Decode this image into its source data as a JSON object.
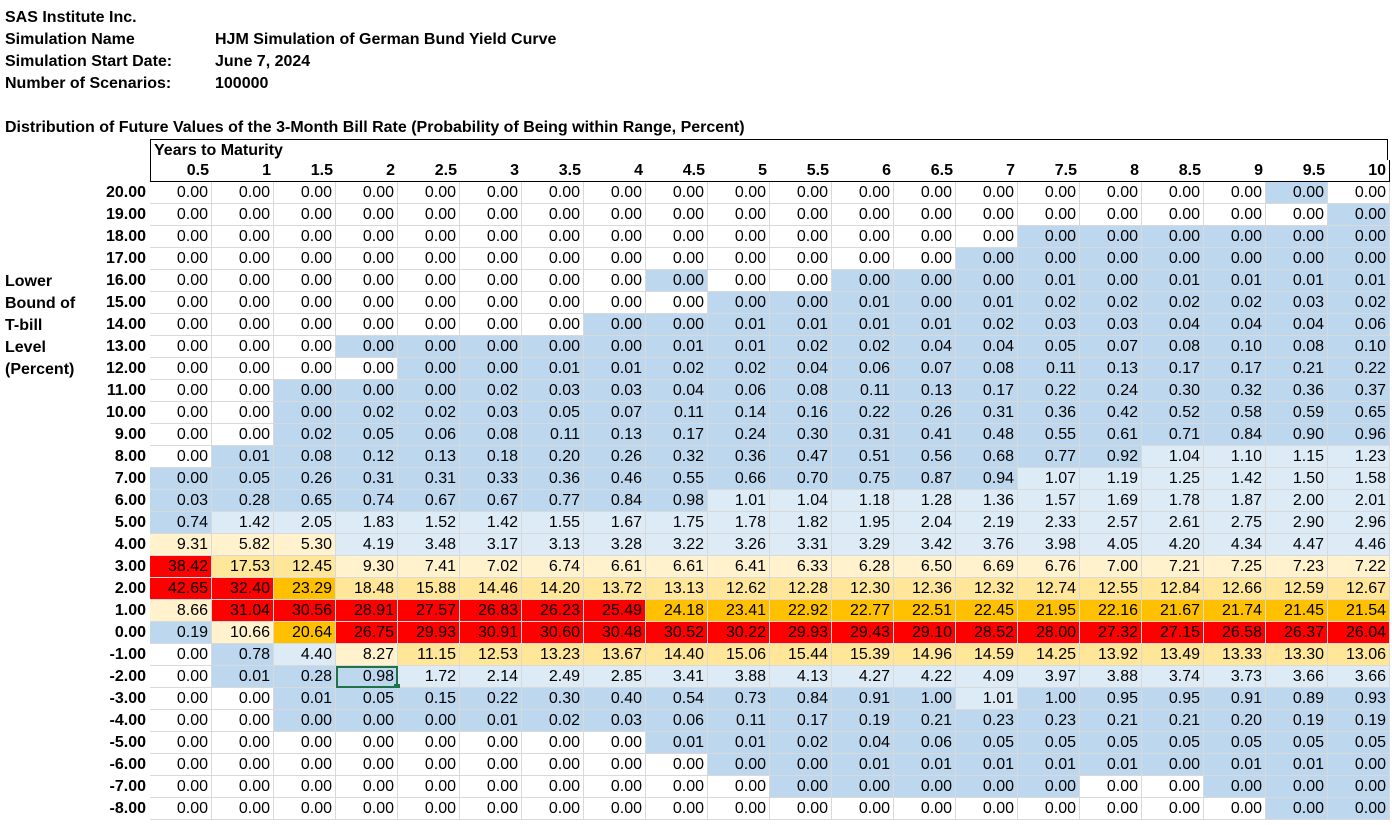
{
  "header": {
    "company": "SAS Institute Inc.",
    "sim_name_label": "Simulation Name",
    "sim_name_value": "HJM Simulation of German Bund Yield Curve",
    "start_label": "Simulation Start Date:",
    "start_value": "June 7, 2024",
    "scen_label": "Number of Scenarios:",
    "scen_value": "100000"
  },
  "table_title": "Distribution of Future Values of the 3-Month Bill Rate (Probability of Being within Range, Percent)",
  "years_label": "Years to Maturity",
  "side_label": [
    "Lower",
    "Bound of",
    "T-bill",
    "Level",
    "(Percent)"
  ],
  "columns": [
    "0.5",
    "1",
    "1.5",
    "2",
    "2.5",
    "3",
    "3.5",
    "4",
    "4.5",
    "5",
    "5.5",
    "6",
    "6.5",
    "7",
    "7.5",
    "8",
    "8.5",
    "9",
    "9.5",
    "10"
  ],
  "colors": {
    "white": "#ffffff",
    "blue": "#bdd7ee",
    "light_blue": "#ddebf7",
    "cream": "#fff2cc",
    "yellow": "#ffe699",
    "orange": "#ffc000",
    "red": "#ff0000",
    "selection": "#217346"
  },
  "selected_cell": {
    "row": 22,
    "col": 3
  },
  "rows": [
    {
      "label": "20.00",
      "values": [
        "0.00",
        "0.00",
        "0.00",
        "0.00",
        "0.00",
        "0.00",
        "0.00",
        "0.00",
        "0.00",
        "0.00",
        "0.00",
        "0.00",
        "0.00",
        "0.00",
        "0.00",
        "0.00",
        "0.00",
        "0.00",
        "0.00",
        "0.00"
      ],
      "shade": [
        0,
        0,
        0,
        0,
        0,
        0,
        0,
        0,
        0,
        0,
        0,
        0,
        0,
        0,
        0,
        0,
        0,
        0,
        1,
        0
      ]
    },
    {
      "label": "19.00",
      "values": [
        "0.00",
        "0.00",
        "0.00",
        "0.00",
        "0.00",
        "0.00",
        "0.00",
        "0.00",
        "0.00",
        "0.00",
        "0.00",
        "0.00",
        "0.00",
        "0.00",
        "0.00",
        "0.00",
        "0.00",
        "0.00",
        "0.00",
        "0.00"
      ],
      "shade": [
        0,
        0,
        0,
        0,
        0,
        0,
        0,
        0,
        0,
        0,
        0,
        0,
        0,
        0,
        0,
        0,
        0,
        0,
        0,
        1
      ]
    },
    {
      "label": "18.00",
      "values": [
        "0.00",
        "0.00",
        "0.00",
        "0.00",
        "0.00",
        "0.00",
        "0.00",
        "0.00",
        "0.00",
        "0.00",
        "0.00",
        "0.00",
        "0.00",
        "0.00",
        "0.00",
        "0.00",
        "0.00",
        "0.00",
        "0.00",
        "0.00"
      ],
      "shade": [
        0,
        0,
        0,
        0,
        0,
        0,
        0,
        0,
        0,
        0,
        0,
        0,
        0,
        0,
        1,
        1,
        1,
        1,
        1,
        1
      ]
    },
    {
      "label": "17.00",
      "values": [
        "0.00",
        "0.00",
        "0.00",
        "0.00",
        "0.00",
        "0.00",
        "0.00",
        "0.00",
        "0.00",
        "0.00",
        "0.00",
        "0.00",
        "0.00",
        "0.00",
        "0.00",
        "0.00",
        "0.00",
        "0.00",
        "0.00",
        "0.00"
      ],
      "shade": [
        0,
        0,
        0,
        0,
        0,
        0,
        0,
        0,
        0,
        0,
        0,
        0,
        0,
        1,
        1,
        1,
        1,
        1,
        1,
        1
      ]
    },
    {
      "label": "16.00",
      "values": [
        "0.00",
        "0.00",
        "0.00",
        "0.00",
        "0.00",
        "0.00",
        "0.00",
        "0.00",
        "0.00",
        "0.00",
        "0.00",
        "0.00",
        "0.00",
        "0.00",
        "0.01",
        "0.00",
        "0.01",
        "0.01",
        "0.01",
        "0.01"
      ],
      "shade": [
        0,
        0,
        0,
        0,
        0,
        0,
        0,
        0,
        1,
        0,
        0,
        1,
        1,
        1,
        1,
        1,
        1,
        1,
        1,
        1
      ]
    },
    {
      "label": "15.00",
      "values": [
        "0.00",
        "0.00",
        "0.00",
        "0.00",
        "0.00",
        "0.00",
        "0.00",
        "0.00",
        "0.00",
        "0.00",
        "0.00",
        "0.01",
        "0.00",
        "0.01",
        "0.02",
        "0.02",
        "0.02",
        "0.02",
        "0.03",
        "0.02"
      ],
      "shade": [
        0,
        0,
        0,
        0,
        0,
        0,
        0,
        0,
        0,
        1,
        1,
        1,
        1,
        1,
        1,
        1,
        1,
        1,
        1,
        1
      ]
    },
    {
      "label": "14.00",
      "values": [
        "0.00",
        "0.00",
        "0.00",
        "0.00",
        "0.00",
        "0.00",
        "0.00",
        "0.00",
        "0.00",
        "0.01",
        "0.01",
        "0.01",
        "0.01",
        "0.02",
        "0.03",
        "0.03",
        "0.04",
        "0.04",
        "0.04",
        "0.06"
      ],
      "shade": [
        0,
        0,
        0,
        0,
        0,
        0,
        0,
        1,
        1,
        1,
        1,
        1,
        1,
        1,
        1,
        1,
        1,
        1,
        1,
        1
      ]
    },
    {
      "label": "13.00",
      "values": [
        "0.00",
        "0.00",
        "0.00",
        "0.00",
        "0.00",
        "0.00",
        "0.00",
        "0.00",
        "0.01",
        "0.01",
        "0.02",
        "0.02",
        "0.04",
        "0.04",
        "0.05",
        "0.07",
        "0.08",
        "0.10",
        "0.08",
        "0.10"
      ],
      "shade": [
        0,
        0,
        0,
        1,
        1,
        1,
        1,
        1,
        1,
        1,
        1,
        1,
        1,
        1,
        1,
        1,
        1,
        1,
        1,
        1
      ]
    },
    {
      "label": "12.00",
      "values": [
        "0.00",
        "0.00",
        "0.00",
        "0.00",
        "0.00",
        "0.00",
        "0.01",
        "0.01",
        "0.02",
        "0.02",
        "0.04",
        "0.06",
        "0.07",
        "0.08",
        "0.11",
        "0.13",
        "0.17",
        "0.17",
        "0.21",
        "0.22"
      ],
      "shade": [
        0,
        0,
        0,
        0,
        1,
        1,
        1,
        1,
        1,
        1,
        1,
        1,
        1,
        1,
        1,
        1,
        1,
        1,
        1,
        1
      ]
    },
    {
      "label": "11.00",
      "values": [
        "0.00",
        "0.00",
        "0.00",
        "0.00",
        "0.00",
        "0.02",
        "0.03",
        "0.03",
        "0.04",
        "0.06",
        "0.08",
        "0.11",
        "0.13",
        "0.17",
        "0.22",
        "0.24",
        "0.30",
        "0.32",
        "0.36",
        "0.37"
      ],
      "shade": [
        0,
        0,
        1,
        1,
        1,
        1,
        1,
        1,
        1,
        1,
        1,
        1,
        1,
        1,
        1,
        1,
        1,
        1,
        1,
        1
      ]
    },
    {
      "label": "10.00",
      "values": [
        "0.00",
        "0.00",
        "0.00",
        "0.02",
        "0.02",
        "0.03",
        "0.05",
        "0.07",
        "0.11",
        "0.14",
        "0.16",
        "0.22",
        "0.26",
        "0.31",
        "0.36",
        "0.42",
        "0.52",
        "0.58",
        "0.59",
        "0.65"
      ],
      "shade": [
        0,
        0,
        1,
        1,
        1,
        1,
        1,
        1,
        1,
        1,
        1,
        1,
        1,
        1,
        1,
        1,
        1,
        1,
        1,
        1
      ]
    },
    {
      "label": "9.00",
      "values": [
        "0.00",
        "0.00",
        "0.02",
        "0.05",
        "0.06",
        "0.08",
        "0.11",
        "0.13",
        "0.17",
        "0.24",
        "0.30",
        "0.31",
        "0.41",
        "0.48",
        "0.55",
        "0.61",
        "0.71",
        "0.84",
        "0.90",
        "0.96"
      ],
      "shade": [
        0,
        0,
        1,
        1,
        1,
        1,
        1,
        1,
        1,
        1,
        1,
        1,
        1,
        1,
        1,
        1,
        1,
        1,
        1,
        1
      ]
    },
    {
      "label": "8.00",
      "values": [
        "0.00",
        "0.01",
        "0.08",
        "0.12",
        "0.13",
        "0.18",
        "0.20",
        "0.26",
        "0.32",
        "0.36",
        "0.47",
        "0.51",
        "0.56",
        "0.68",
        "0.77",
        "0.92",
        "1.04",
        "1.10",
        "1.15",
        "1.23"
      ],
      "shade": [
        0,
        1,
        1,
        1,
        1,
        1,
        1,
        1,
        1,
        1,
        1,
        1,
        1,
        1,
        1,
        1,
        2,
        2,
        2,
        2
      ]
    },
    {
      "label": "7.00",
      "values": [
        "0.00",
        "0.05",
        "0.26",
        "0.31",
        "0.31",
        "0.33",
        "0.36",
        "0.46",
        "0.55",
        "0.66",
        "0.70",
        "0.75",
        "0.87",
        "0.94",
        "1.07",
        "1.19",
        "1.25",
        "1.42",
        "1.50",
        "1.58"
      ],
      "shade": [
        1,
        1,
        1,
        1,
        1,
        1,
        1,
        1,
        1,
        1,
        1,
        1,
        1,
        1,
        2,
        2,
        2,
        2,
        2,
        2
      ]
    },
    {
      "label": "6.00",
      "values": [
        "0.03",
        "0.28",
        "0.65",
        "0.74",
        "0.67",
        "0.67",
        "0.77",
        "0.84",
        "0.98",
        "1.01",
        "1.04",
        "1.18",
        "1.28",
        "1.36",
        "1.57",
        "1.69",
        "1.78",
        "1.87",
        "2.00",
        "2.01"
      ],
      "shade": [
        1,
        1,
        1,
        1,
        1,
        1,
        1,
        1,
        1,
        2,
        2,
        2,
        2,
        2,
        2,
        2,
        2,
        2,
        2,
        2
      ]
    },
    {
      "label": "5.00",
      "values": [
        "0.74",
        "1.42",
        "2.05",
        "1.83",
        "1.52",
        "1.42",
        "1.55",
        "1.67",
        "1.75",
        "1.78",
        "1.82",
        "1.95",
        "2.04",
        "2.19",
        "2.33",
        "2.57",
        "2.61",
        "2.75",
        "2.90",
        "2.96"
      ],
      "shade": [
        1,
        2,
        2,
        2,
        2,
        2,
        2,
        2,
        2,
        2,
        2,
        2,
        2,
        2,
        2,
        2,
        2,
        2,
        2,
        2
      ]
    },
    {
      "label": "4.00",
      "values": [
        "9.31",
        "5.82",
        "5.30",
        "4.19",
        "3.48",
        "3.17",
        "3.13",
        "3.28",
        "3.22",
        "3.26",
        "3.31",
        "3.29",
        "3.42",
        "3.76",
        "3.98",
        "4.05",
        "4.20",
        "4.34",
        "4.47",
        "4.46"
      ],
      "shade": [
        3,
        3,
        3,
        2,
        2,
        2,
        2,
        2,
        2,
        2,
        2,
        2,
        2,
        2,
        2,
        2,
        2,
        2,
        2,
        2
      ]
    },
    {
      "label": "3.00",
      "values": [
        "38.42",
        "17.53",
        "12.45",
        "9.30",
        "7.41",
        "7.02",
        "6.74",
        "6.61",
        "6.61",
        "6.41",
        "6.33",
        "6.28",
        "6.50",
        "6.69",
        "6.76",
        "7.00",
        "7.21",
        "7.25",
        "7.23",
        "7.22"
      ],
      "shade": [
        6,
        4,
        4,
        3,
        3,
        3,
        3,
        3,
        3,
        3,
        3,
        3,
        3,
        3,
        3,
        3,
        3,
        3,
        3,
        3
      ]
    },
    {
      "label": "2.00",
      "values": [
        "42.65",
        "32.40",
        "23.29",
        "18.48",
        "15.88",
        "14.46",
        "14.20",
        "13.72",
        "13.13",
        "12.62",
        "12.28",
        "12.30",
        "12.36",
        "12.32",
        "12.74",
        "12.55",
        "12.84",
        "12.66",
        "12.59",
        "12.67"
      ],
      "shade": [
        6,
        6,
        5,
        4,
        4,
        4,
        4,
        4,
        4,
        4,
        4,
        4,
        4,
        4,
        4,
        4,
        4,
        4,
        4,
        4
      ]
    },
    {
      "label": "1.00",
      "values": [
        "8.66",
        "31.04",
        "30.56",
        "28.91",
        "27.57",
        "26.83",
        "26.23",
        "25.49",
        "24.18",
        "23.41",
        "22.92",
        "22.77",
        "22.51",
        "22.45",
        "21.95",
        "22.16",
        "21.67",
        "21.74",
        "21.45",
        "21.54"
      ],
      "shade": [
        3,
        6,
        6,
        6,
        6,
        6,
        6,
        6,
        5,
        5,
        5,
        5,
        5,
        5,
        5,
        5,
        5,
        5,
        5,
        5
      ]
    },
    {
      "label": "0.00",
      "values": [
        "0.19",
        "10.66",
        "20.64",
        "26.75",
        "29.93",
        "30.91",
        "30.60",
        "30.48",
        "30.52",
        "30.22",
        "29.93",
        "29.43",
        "29.10",
        "28.52",
        "28.00",
        "27.32",
        "27.15",
        "26.58",
        "26.37",
        "26.04"
      ],
      "shade": [
        1,
        3,
        5,
        6,
        6,
        6,
        6,
        6,
        6,
        6,
        6,
        6,
        6,
        6,
        6,
        6,
        6,
        6,
        6,
        6
      ]
    },
    {
      "label": "-1.00",
      "values": [
        "0.00",
        "0.78",
        "4.40",
        "8.27",
        "11.15",
        "12.53",
        "13.23",
        "13.67",
        "14.40",
        "15.06",
        "15.44",
        "15.39",
        "14.96",
        "14.59",
        "14.25",
        "13.92",
        "13.49",
        "13.33",
        "13.30",
        "13.06"
      ],
      "shade": [
        0,
        1,
        2,
        3,
        4,
        4,
        4,
        4,
        4,
        4,
        4,
        4,
        4,
        4,
        4,
        4,
        4,
        4,
        4,
        4
      ]
    },
    {
      "label": "-2.00",
      "values": [
        "0.00",
        "0.01",
        "0.28",
        "0.98",
        "1.72",
        "2.14",
        "2.49",
        "2.85",
        "3.41",
        "3.88",
        "4.13",
        "4.27",
        "4.22",
        "4.09",
        "3.97",
        "3.88",
        "3.74",
        "3.73",
        "3.66",
        "3.66"
      ],
      "shade": [
        0,
        1,
        1,
        1,
        2,
        2,
        2,
        2,
        2,
        2,
        2,
        2,
        2,
        2,
        2,
        2,
        2,
        2,
        2,
        2
      ]
    },
    {
      "label": "-3.00",
      "values": [
        "0.00",
        "0.00",
        "0.01",
        "0.05",
        "0.15",
        "0.22",
        "0.30",
        "0.40",
        "0.54",
        "0.73",
        "0.84",
        "0.91",
        "1.00",
        "1.01",
        "1.00",
        "0.95",
        "0.95",
        "0.91",
        "0.89",
        "0.93"
      ],
      "shade": [
        0,
        0,
        1,
        1,
        1,
        1,
        1,
        1,
        1,
        1,
        1,
        1,
        1,
        2,
        1,
        1,
        1,
        1,
        1,
        1
      ]
    },
    {
      "label": "-4.00",
      "values": [
        "0.00",
        "0.00",
        "0.00",
        "0.00",
        "0.00",
        "0.01",
        "0.02",
        "0.03",
        "0.06",
        "0.11",
        "0.17",
        "0.19",
        "0.21",
        "0.23",
        "0.23",
        "0.21",
        "0.21",
        "0.20",
        "0.19",
        "0.19"
      ],
      "shade": [
        0,
        0,
        1,
        1,
        1,
        1,
        1,
        1,
        1,
        1,
        1,
        1,
        1,
        1,
        1,
        1,
        1,
        1,
        1,
        1
      ]
    },
    {
      "label": "-5.00",
      "values": [
        "0.00",
        "0.00",
        "0.00",
        "0.00",
        "0.00",
        "0.00",
        "0.00",
        "0.00",
        "0.01",
        "0.01",
        "0.02",
        "0.04",
        "0.06",
        "0.05",
        "0.05",
        "0.05",
        "0.05",
        "0.05",
        "0.05",
        "0.05"
      ],
      "shade": [
        0,
        0,
        0,
        0,
        0,
        0,
        0,
        0,
        1,
        1,
        1,
        1,
        1,
        1,
        1,
        1,
        1,
        1,
        1,
        1
      ]
    },
    {
      "label": "-6.00",
      "values": [
        "0.00",
        "0.00",
        "0.00",
        "0.00",
        "0.00",
        "0.00",
        "0.00",
        "0.00",
        "0.00",
        "0.00",
        "0.00",
        "0.01",
        "0.01",
        "0.01",
        "0.01",
        "0.01",
        "0.00",
        "0.01",
        "0.01",
        "0.00"
      ],
      "shade": [
        0,
        0,
        0,
        0,
        0,
        0,
        0,
        0,
        0,
        1,
        1,
        1,
        1,
        1,
        1,
        1,
        1,
        1,
        1,
        1
      ]
    },
    {
      "label": "-7.00",
      "values": [
        "0.00",
        "0.00",
        "0.00",
        "0.00",
        "0.00",
        "0.00",
        "0.00",
        "0.00",
        "0.00",
        "0.00",
        "0.00",
        "0.00",
        "0.00",
        "0.00",
        "0.00",
        "0.00",
        "0.00",
        "0.00",
        "0.00",
        "0.00"
      ],
      "shade": [
        0,
        0,
        0,
        0,
        0,
        0,
        0,
        0,
        0,
        0,
        1,
        1,
        1,
        1,
        1,
        0,
        0,
        1,
        1,
        1
      ]
    },
    {
      "label": "-8.00",
      "values": [
        "0.00",
        "0.00",
        "0.00",
        "0.00",
        "0.00",
        "0.00",
        "0.00",
        "0.00",
        "0.00",
        "0.00",
        "0.00",
        "0.00",
        "0.00",
        "0.00",
        "0.00",
        "0.00",
        "0.00",
        "0.00",
        "0.00",
        "0.00"
      ],
      "shade": [
        0,
        0,
        0,
        0,
        0,
        0,
        0,
        0,
        0,
        0,
        0,
        0,
        0,
        0,
        0,
        0,
        0,
        0,
        1,
        1
      ]
    }
  ]
}
